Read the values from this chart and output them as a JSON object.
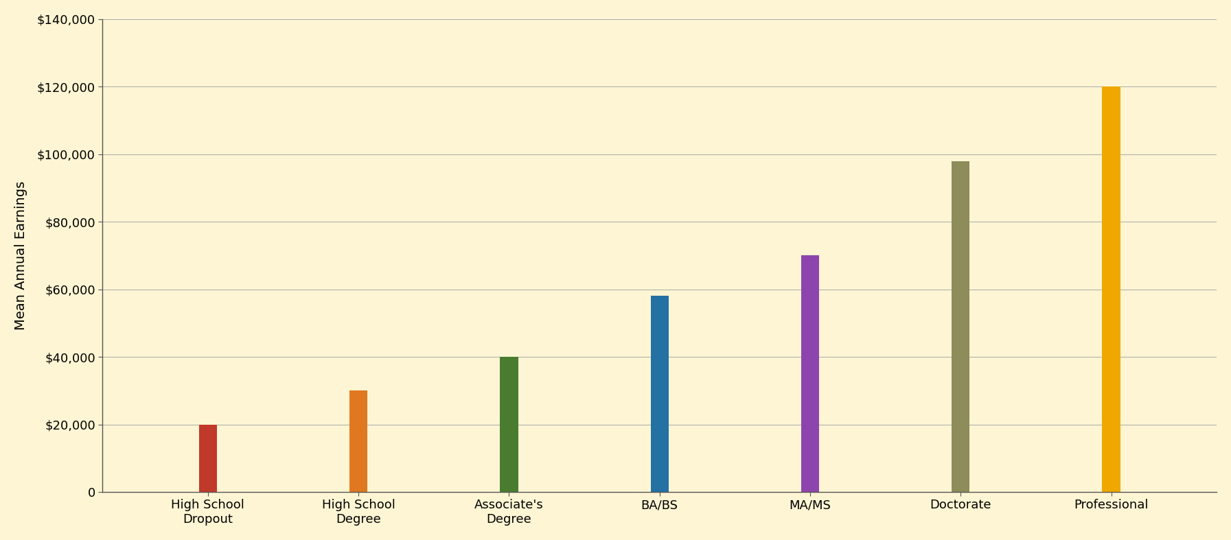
{
  "categories": [
    "High School\nDropout",
    "High School\nDegree",
    "Associate's\nDegree",
    "BA/BS",
    "MA/MS",
    "Doctorate",
    "Professional"
  ],
  "values": [
    20000,
    30000,
    40000,
    58000,
    70000,
    98000,
    120000
  ],
  "bar_colors": [
    "#c0392b",
    "#e07820",
    "#4a7c2f",
    "#2471a3",
    "#8e44ad",
    "#8d8c5a",
    "#f0a800"
  ],
  "ylabel": "Mean Annual Earnings",
  "ylim": [
    0,
    140000
  ],
  "ytick_step": 20000,
  "background_color": "#fdf5d3",
  "plot_bg_color": "#fdf5d3",
  "grid_color": "#aaaaaa",
  "bar_width": 0.12,
  "axis_label_fontsize": 14,
  "tick_fontsize": 13,
  "xlabel_fontsize": 13,
  "spine_color": "#555555"
}
